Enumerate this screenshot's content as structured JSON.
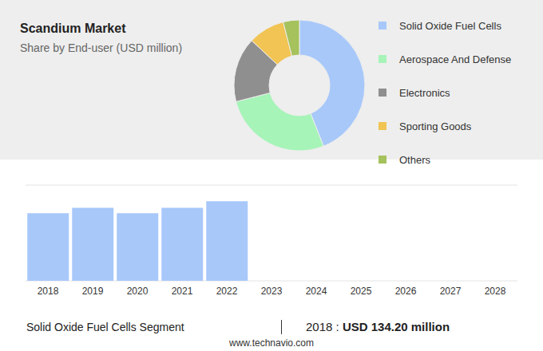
{
  "chart_data": [
    {
      "type": "pie",
      "title": "Scandium Market",
      "subtitle": "Share by End-user (USD million)",
      "categories": [
        "Solid Oxide Fuel Cells",
        "Aerospace And Defense",
        "Electronics",
        "Sporting Goods",
        "Others"
      ],
      "values": [
        44,
        27,
        16,
        9,
        4
      ],
      "colors": [
        "#a8c8fa",
        "#a6f4b8",
        "#8f8f8f",
        "#f1c453",
        "#a5c25c"
      ],
      "legend": "right"
    },
    {
      "type": "bar",
      "categories": [
        "2018",
        "2019",
        "2020",
        "2021",
        "2022",
        "2023",
        "2024",
        "2025",
        "2026",
        "2027",
        "2028"
      ],
      "values": [
        134.2,
        145,
        134.2,
        145,
        158,
        null,
        null,
        null,
        null,
        null,
        null
      ],
      "color": "#a8c8fa",
      "ylim": [
        0,
        190
      ],
      "yticks": [
        0,
        19,
        38,
        57,
        76,
        95,
        114,
        133,
        152,
        171,
        190
      ],
      "grid": true,
      "tick_labels": "x"
    }
  ],
  "footer": {
    "segment": "Solid Oxide Fuel Cells Segment",
    "year": "2018",
    "separator": ":",
    "currency": "USD",
    "value": 134.2,
    "value_label": "134.20 million",
    "source": "www.technavio.com"
  }
}
